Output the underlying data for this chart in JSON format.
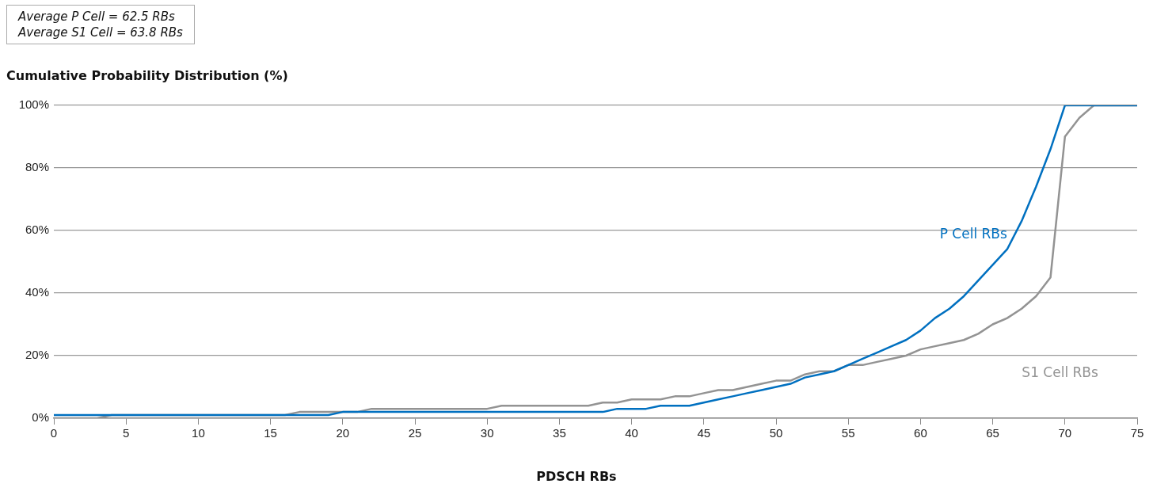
{
  "chart_data": {
    "type": "line",
    "ylabel": "Cumulative Probability Distribution (%)",
    "xlabel": "PDSCH RBs",
    "annotations": [
      "Average P Cell = 62.5 RBs",
      "Average S1 Cell = 63.8 RBs"
    ],
    "x": [
      0,
      1,
      2,
      3,
      4,
      5,
      6,
      7,
      8,
      9,
      10,
      11,
      12,
      13,
      14,
      15,
      16,
      17,
      18,
      19,
      20,
      21,
      22,
      23,
      24,
      25,
      26,
      27,
      28,
      29,
      30,
      31,
      32,
      33,
      34,
      35,
      36,
      37,
      38,
      39,
      40,
      41,
      42,
      43,
      44,
      45,
      46,
      47,
      48,
      49,
      50,
      51,
      52,
      53,
      54,
      55,
      56,
      57,
      58,
      59,
      60,
      61,
      62,
      63,
      64,
      65,
      66,
      67,
      68,
      69,
      70,
      71,
      72,
      73,
      74,
      75
    ],
    "series": [
      {
        "name": "P Cell RBs",
        "color": "#0070c0",
        "values": [
          1,
          1,
          1,
          1,
          1,
          1,
          1,
          1,
          1,
          1,
          1,
          1,
          1,
          1,
          1,
          1,
          1,
          1,
          1,
          1,
          2,
          2,
          2,
          2,
          2,
          2,
          2,
          2,
          2,
          2,
          2,
          2,
          2,
          2,
          2,
          2,
          2,
          2,
          2,
          3,
          3,
          3,
          4,
          4,
          4,
          5,
          6,
          7,
          8,
          9,
          10,
          11,
          13,
          14,
          15,
          17,
          19,
          21,
          23,
          25,
          28,
          32,
          35,
          39,
          44,
          49,
          54,
          63,
          74,
          86,
          100,
          100,
          100,
          100,
          100,
          100
        ]
      },
      {
        "name": "S1 Cell RBs",
        "color": "#939393",
        "values": [
          0,
          0,
          0,
          0,
          1,
          1,
          1,
          1,
          1,
          1,
          1,
          1,
          1,
          1,
          1,
          1,
          1,
          2,
          2,
          2,
          2,
          2,
          3,
          3,
          3,
          3,
          3,
          3,
          3,
          3,
          3,
          4,
          4,
          4,
          4,
          4,
          4,
          4,
          5,
          5,
          6,
          6,
          6,
          7,
          7,
          8,
          9,
          9,
          10,
          11,
          12,
          12,
          14,
          15,
          15,
          17,
          17,
          18,
          19,
          20,
          22,
          23,
          24,
          25,
          27,
          30,
          32,
          35,
          39,
          45,
          90,
          96,
          100,
          100,
          100,
          100
        ]
      }
    ],
    "xlim": [
      0,
      75
    ],
    "xticks": [
      0,
      5,
      10,
      15,
      20,
      25,
      30,
      35,
      40,
      45,
      50,
      55,
      60,
      65,
      70,
      75
    ],
    "ylim": [
      0,
      100
    ],
    "yticks": [
      {
        "value": 0,
        "label": "0%"
      },
      {
        "value": 20,
        "label": "20%"
      },
      {
        "value": 40,
        "label": "40%"
      },
      {
        "value": 60,
        "label": "60%"
      },
      {
        "value": 80,
        "label": "80%"
      },
      {
        "value": 100,
        "label": "100%"
      }
    ],
    "grid": "y",
    "legend": false,
    "marker": "none",
    "line_style": "solid"
  }
}
